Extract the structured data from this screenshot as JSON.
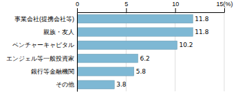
{
  "chart_data": {
    "type": "bar",
    "orientation": "horizontal",
    "categories": [
      "事業会社(提携会社等)",
      "親族・友人",
      "ベンチャーキャピタル",
      "エンジェル等一般投資家",
      "銀行等金融機関",
      "その他"
    ],
    "values": [
      11.8,
      11.8,
      10.2,
      6.2,
      5.8,
      3.8
    ],
    "color": "#7eb8d4",
    "xlim": [
      0,
      15
    ],
    "xticks": [
      0,
      5,
      10,
      {
        "value": 15,
        "label": "15(%)"
      }
    ],
    "grid": true,
    "data_labels": true
  }
}
